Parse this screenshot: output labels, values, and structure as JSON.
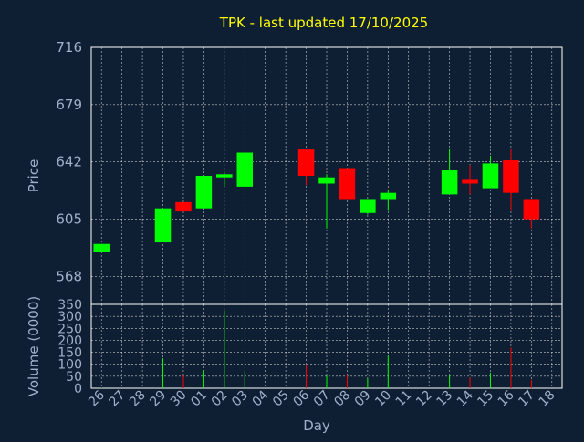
{
  "chart_data": [
    {
      "type": "candlestick",
      "title": "TPK - last updated 17/10/2025",
      "ylabel": "Price",
      "ylim": [
        550,
        716
      ],
      "yticks": [
        716,
        679,
        642,
        605,
        568
      ],
      "grid": true,
      "categories": [
        "26",
        "27",
        "28",
        "29",
        "30",
        "01",
        "02",
        "03",
        "04",
        "05",
        "06",
        "07",
        "08",
        "09",
        "10",
        "11",
        "12",
        "13",
        "14",
        "15",
        "16",
        "17",
        "18"
      ],
      "candles": [
        {
          "x": "26",
          "open": 584,
          "close": 589,
          "high": 589,
          "low": 584
        },
        {
          "x": "29",
          "open": 590,
          "close": 612,
          "high": 612,
          "low": 590
        },
        {
          "x": "30",
          "open": 616,
          "close": 610,
          "high": 616,
          "low": 610
        },
        {
          "x": "01",
          "open": 612,
          "close": 633,
          "high": 633,
          "low": 612
        },
        {
          "x": "02",
          "open": 632,
          "close": 634,
          "high": 635,
          "low": 626
        },
        {
          "x": "03",
          "open": 626,
          "close": 648,
          "high": 648,
          "low": 626
        },
        {
          "x": "06",
          "open": 650,
          "close": 633,
          "high": 650,
          "low": 627
        },
        {
          "x": "07",
          "open": 628,
          "close": 632,
          "high": 634,
          "low": 599
        },
        {
          "x": "08",
          "open": 638,
          "close": 618,
          "high": 638,
          "low": 618
        },
        {
          "x": "09",
          "open": 609,
          "close": 618,
          "high": 618,
          "low": 608
        },
        {
          "x": "10",
          "open": 618,
          "close": 622,
          "high": 624,
          "low": 611
        },
        {
          "x": "13",
          "open": 621,
          "close": 637,
          "high": 650,
          "low": 621
        },
        {
          "x": "14",
          "open": 631,
          "close": 628,
          "high": 640,
          "low": 621
        },
        {
          "x": "15",
          "open": 625,
          "close": 641,
          "high": 646,
          "low": 625
        },
        {
          "x": "16",
          "open": 643,
          "close": 622,
          "high": 650,
          "low": 611
        },
        {
          "x": "17",
          "open": 618,
          "close": 605,
          "high": 618,
          "low": 599
        }
      ],
      "up_color": "#00ff00",
      "down_color": "#ff0000"
    },
    {
      "type": "bar",
      "ylabel": "Volume (0000)",
      "xlabel": "Day",
      "ylim": [
        0,
        350
      ],
      "yticks": [
        350,
        300,
        250,
        200,
        150,
        100,
        50,
        0
      ],
      "grid": true,
      "categories": [
        "26",
        "27",
        "28",
        "29",
        "30",
        "01",
        "02",
        "03",
        "04",
        "05",
        "06",
        "07",
        "08",
        "09",
        "10",
        "11",
        "12",
        "13",
        "14",
        "15",
        "16",
        "17",
        "18"
      ],
      "values": [
        {
          "x": "26",
          "v": 2,
          "dir": "up"
        },
        {
          "x": "29",
          "v": 125,
          "dir": "up"
        },
        {
          "x": "30",
          "v": 55,
          "dir": "down"
        },
        {
          "x": "01",
          "v": 75,
          "dir": "up"
        },
        {
          "x": "02",
          "v": 325,
          "dir": "up"
        },
        {
          "x": "03",
          "v": 70,
          "dir": "up"
        },
        {
          "x": "06",
          "v": 95,
          "dir": "down"
        },
        {
          "x": "07",
          "v": 55,
          "dir": "up"
        },
        {
          "x": "08",
          "v": 55,
          "dir": "down"
        },
        {
          "x": "09",
          "v": 40,
          "dir": "up"
        },
        {
          "x": "10",
          "v": 135,
          "dir": "up"
        },
        {
          "x": "13",
          "v": 55,
          "dir": "up"
        },
        {
          "x": "14",
          "v": 45,
          "dir": "down"
        },
        {
          "x": "15",
          "v": 65,
          "dir": "up"
        },
        {
          "x": "16",
          "v": 170,
          "dir": "down"
        },
        {
          "x": "17",
          "v": 35,
          "dir": "down"
        }
      ]
    }
  ]
}
